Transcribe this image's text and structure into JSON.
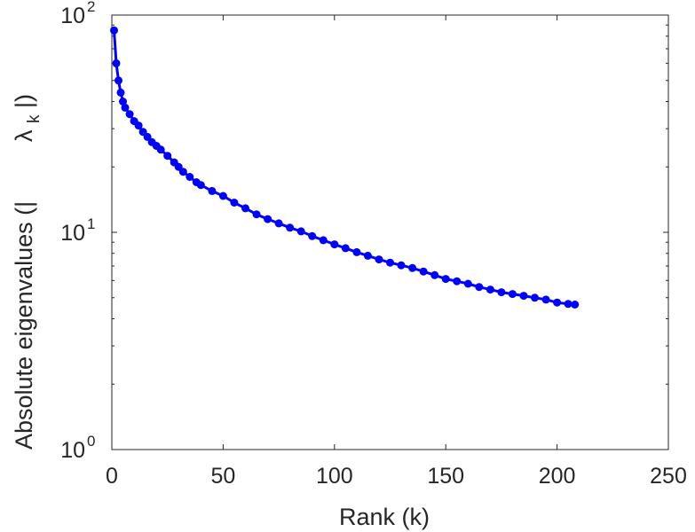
{
  "chart_data": {
    "type": "line",
    "xlabel": "Rank (k)",
    "ylabel": "Absolute eigenvalues (|     λk|)",
    "ylabel_parts": {
      "prefix": "Absolute eigenvalues (|",
      "lambda": "λ",
      "sub": "k",
      "suffix": "|)"
    },
    "xlim": [
      0,
      250
    ],
    "ylim": [
      1,
      100
    ],
    "yscale": "log",
    "xticks": [
      {
        "value": 0,
        "label": "0"
      },
      {
        "value": 50,
        "label": "50"
      },
      {
        "value": 100,
        "label": "100"
      },
      {
        "value": 150,
        "label": "150"
      },
      {
        "value": 200,
        "label": "200"
      },
      {
        "value": 250,
        "label": "250"
      }
    ],
    "yticks": [
      {
        "value": 1,
        "base": "10",
        "exp": "0"
      },
      {
        "value": 10,
        "base": "10",
        "exp": "1"
      },
      {
        "value": 100,
        "base": "10",
        "exp": "2"
      }
    ],
    "grid": false,
    "series": [
      {
        "color": "#0000ff",
        "marker": "circle",
        "x": [
          1,
          2,
          3,
          4,
          5,
          6,
          8,
          10,
          12,
          14,
          16,
          18,
          20,
          22,
          25,
          28,
          30,
          32,
          35,
          38,
          40,
          45,
          50,
          55,
          60,
          65,
          70,
          75,
          80,
          85,
          90,
          95,
          100,
          105,
          110,
          115,
          120,
          125,
          130,
          135,
          140,
          145,
          150,
          155,
          160,
          165,
          170,
          175,
          180,
          185,
          190,
          195,
          200,
          205,
          208
        ],
        "y": [
          85,
          60,
          50,
          44,
          40,
          37.5,
          35,
          32.5,
          31,
          29,
          27.5,
          26,
          25,
          24,
          22.5,
          21,
          20,
          19,
          18,
          17,
          16.5,
          15.5,
          14.7,
          13.7,
          12.9,
          12.1,
          11.5,
          11.0,
          10.5,
          10.1,
          9.6,
          9.2,
          8.8,
          8.45,
          8.1,
          7.8,
          7.5,
          7.25,
          7.05,
          6.85,
          6.6,
          6.35,
          6.1,
          5.95,
          5.8,
          5.6,
          5.45,
          5.3,
          5.2,
          5.1,
          5.0,
          4.9,
          4.75,
          4.68,
          4.65
        ]
      }
    ]
  }
}
